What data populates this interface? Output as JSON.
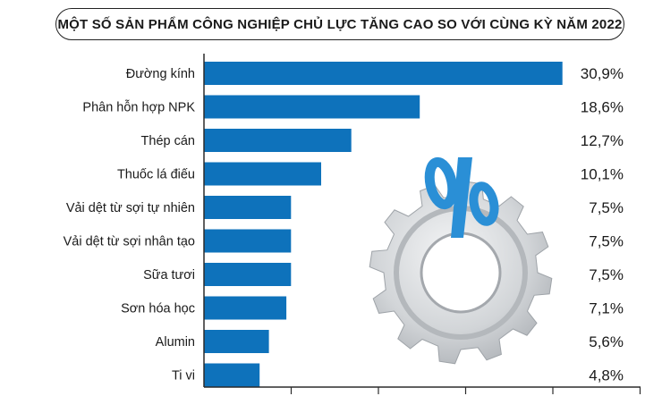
{
  "chart_data": {
    "type": "bar",
    "orientation": "horizontal",
    "title": "MỘT SỐ SẢN PHẨM CÔNG NGHIỆP CHỦ LỰC TĂNG CAO SO VỚI CÙNG KỲ NĂM 2022",
    "categories": [
      "Đường kính",
      "Phân hỗn hợp NPK",
      "Thép cán",
      "Thuốc lá điếu",
      "Vải dệt từ sợi tự nhiên",
      "Vải dệt từ sợi nhân tạo",
      "Sữa tươi",
      "Sơn hóa học",
      "Alumin",
      "Ti vi"
    ],
    "values": [
      30.9,
      18.6,
      12.7,
      10.1,
      7.5,
      7.5,
      7.5,
      7.1,
      5.6,
      4.8
    ],
    "value_labels": [
      "30,9%",
      "18,6%",
      "12,7%",
      "10,1%",
      "7,5%",
      "7,5%",
      "7,5%",
      "7,1%",
      "5,6%",
      "4,8%"
    ],
    "xlim": [
      0,
      31
    ],
    "grid": false,
    "legend": "none"
  },
  "colors": {
    "bar": "#0e72bb",
    "gear": "#c9cdd1",
    "percent_sign": "#2a8fd6"
  },
  "decoration": {
    "gear_icon": "gear-icon",
    "percent_icon": "percent-icon"
  }
}
